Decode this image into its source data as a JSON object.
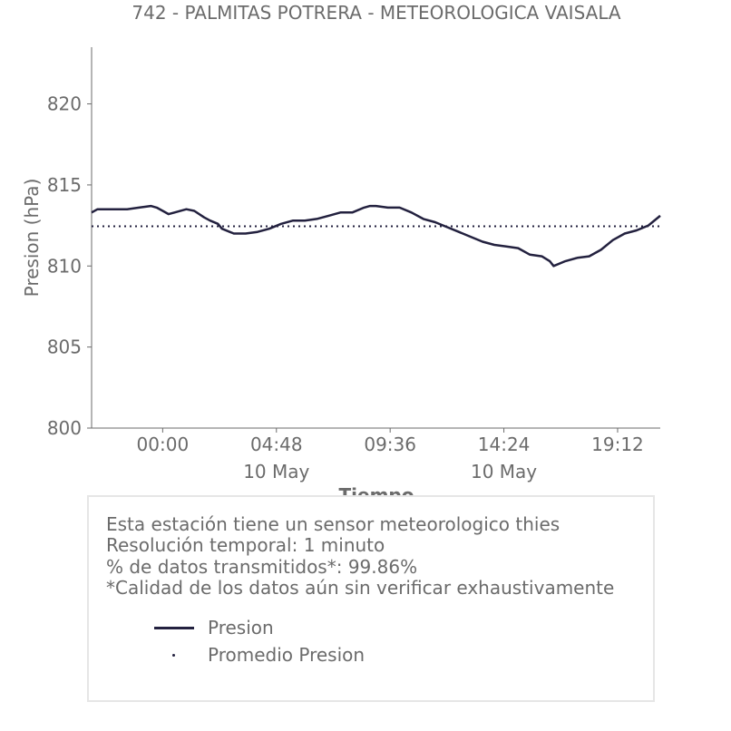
{
  "chart_data": {
    "type": "line",
    "title": "742 - PALMITAS POTRERA - METEOROLOGICA VAISALA",
    "xlabel": "Tiempo",
    "ylabel": "Presion (hPa)",
    "ylim": [
      800,
      823.5
    ],
    "y_ticks": [
      800,
      805,
      810,
      815,
      820
    ],
    "x_ticks": [
      "00:00",
      "04:48",
      "09:36",
      "14:24",
      "19:12"
    ],
    "x_tick_date_labels": [
      "",
      "10 May",
      "",
      "10 May",
      ""
    ],
    "xlim": [
      "2024-05-09 21:00",
      "2024-05-10 21:00"
    ],
    "grid": false,
    "series": [
      {
        "name": "Presion",
        "style": "solid",
        "color": "#23213f",
        "points": [
          [
            "2024-05-09 21:00",
            813.3
          ],
          [
            "2024-05-09 21:15",
            813.5
          ],
          [
            "2024-05-09 22:00",
            813.5
          ],
          [
            "2024-05-09 22:30",
            813.5
          ],
          [
            "2024-05-09 23:00",
            813.6
          ],
          [
            "2024-05-09 23:30",
            813.7
          ],
          [
            "2024-05-09 23:45",
            813.6
          ],
          [
            "2024-05-10 00:00",
            813.4
          ],
          [
            "2024-05-10 00:15",
            813.2
          ],
          [
            "2024-05-10 00:30",
            813.3
          ],
          [
            "2024-05-10 01:00",
            813.5
          ],
          [
            "2024-05-10 01:20",
            813.4
          ],
          [
            "2024-05-10 01:45",
            813.0
          ],
          [
            "2024-05-10 02:00",
            812.8
          ],
          [
            "2024-05-10 02:20",
            812.6
          ],
          [
            "2024-05-10 02:30",
            812.3
          ],
          [
            "2024-05-10 03:00",
            812.0
          ],
          [
            "2024-05-10 03:30",
            812.0
          ],
          [
            "2024-05-10 04:00",
            812.1
          ],
          [
            "2024-05-10 04:30",
            812.3
          ],
          [
            "2024-05-10 05:00",
            812.6
          ],
          [
            "2024-05-10 05:30",
            812.8
          ],
          [
            "2024-05-10 06:00",
            812.8
          ],
          [
            "2024-05-10 06:30",
            812.9
          ],
          [
            "2024-05-10 07:00",
            813.1
          ],
          [
            "2024-05-10 07:30",
            813.3
          ],
          [
            "2024-05-10 08:00",
            813.3
          ],
          [
            "2024-05-10 08:30",
            813.6
          ],
          [
            "2024-05-10 08:45",
            813.7
          ],
          [
            "2024-05-10 09:00",
            813.7
          ],
          [
            "2024-05-10 09:30",
            813.6
          ],
          [
            "2024-05-10 10:00",
            813.6
          ],
          [
            "2024-05-10 10:30",
            813.3
          ],
          [
            "2024-05-10 11:00",
            812.9
          ],
          [
            "2024-05-10 11:30",
            812.7
          ],
          [
            "2024-05-10 12:00",
            812.4
          ],
          [
            "2024-05-10 12:30",
            812.1
          ],
          [
            "2024-05-10 13:00",
            811.8
          ],
          [
            "2024-05-10 13:30",
            811.5
          ],
          [
            "2024-05-10 14:00",
            811.3
          ],
          [
            "2024-05-10 14:30",
            811.2
          ],
          [
            "2024-05-10 15:00",
            811.1
          ],
          [
            "2024-05-10 15:30",
            810.7
          ],
          [
            "2024-05-10 16:00",
            810.6
          ],
          [
            "2024-05-10 16:20",
            810.3
          ],
          [
            "2024-05-10 16:30",
            810.0
          ],
          [
            "2024-05-10 17:00",
            810.3
          ],
          [
            "2024-05-10 17:30",
            810.5
          ],
          [
            "2024-05-10 18:00",
            810.6
          ],
          [
            "2024-05-10 18:30",
            811.0
          ],
          [
            "2024-05-10 19:00",
            811.6
          ],
          [
            "2024-05-10 19:30",
            812.0
          ],
          [
            "2024-05-10 20:00",
            812.2
          ],
          [
            "2024-05-10 20:30",
            812.5
          ],
          [
            "2024-05-10 21:00",
            813.1
          ]
        ]
      },
      {
        "name": "Promedio Presion",
        "style": "dotted",
        "color": "#23213f",
        "points": [
          [
            "2024-05-09 21:00",
            812.45
          ],
          [
            "2024-05-10 21:00",
            812.45
          ]
        ]
      }
    ]
  },
  "info_box": {
    "lines": [
      "Esta estación tiene un sensor meteorologico thies",
      "Resolución temporal: 1 minuto",
      "% de datos transmitidos*: 99.86%",
      "*Calidad de los datos aún sin verificar exhaustivamente"
    ],
    "legend": [
      {
        "label": "Presion",
        "marker": "line"
      },
      {
        "label": "Promedio Presion",
        "marker": "dot"
      }
    ],
    "border_color": "#e6e6e6"
  }
}
